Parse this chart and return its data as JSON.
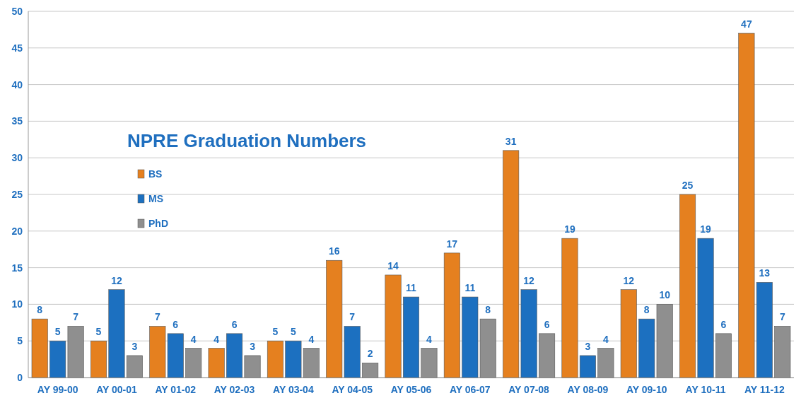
{
  "chart_data": {
    "type": "bar",
    "title": "NPRE Graduation Numbers",
    "categories": [
      "AY 99-00",
      "AY 00-01",
      "AY 01-02",
      "AY 02-03",
      "AY 03-04",
      "AY 04-05",
      "AY 05-06",
      "AY 06-07",
      "AY 07-08",
      "AY 08-09",
      "AY 09-10",
      "AY 10-11",
      "AY 11-12"
    ],
    "series": [
      {
        "name": "BS",
        "color": "#e5801f",
        "values": [
          8,
          5,
          7,
          4,
          5,
          16,
          14,
          17,
          31,
          19,
          12,
          25,
          47
        ]
      },
      {
        "name": "MS",
        "color": "#1c70c0",
        "values": [
          5,
          12,
          6,
          6,
          5,
          7,
          11,
          11,
          12,
          3,
          8,
          19,
          13
        ]
      },
      {
        "name": "PhD",
        "color": "#8f8f8f",
        "values": [
          7,
          3,
          4,
          3,
          4,
          2,
          4,
          8,
          6,
          4,
          10,
          6,
          7
        ]
      }
    ],
    "ylim": [
      0,
      50
    ],
    "yticks": [
      0,
      5,
      10,
      15,
      20,
      25,
      30,
      35,
      40,
      45,
      50
    ],
    "grid": "y",
    "legend": "left",
    "data_labels": true
  }
}
